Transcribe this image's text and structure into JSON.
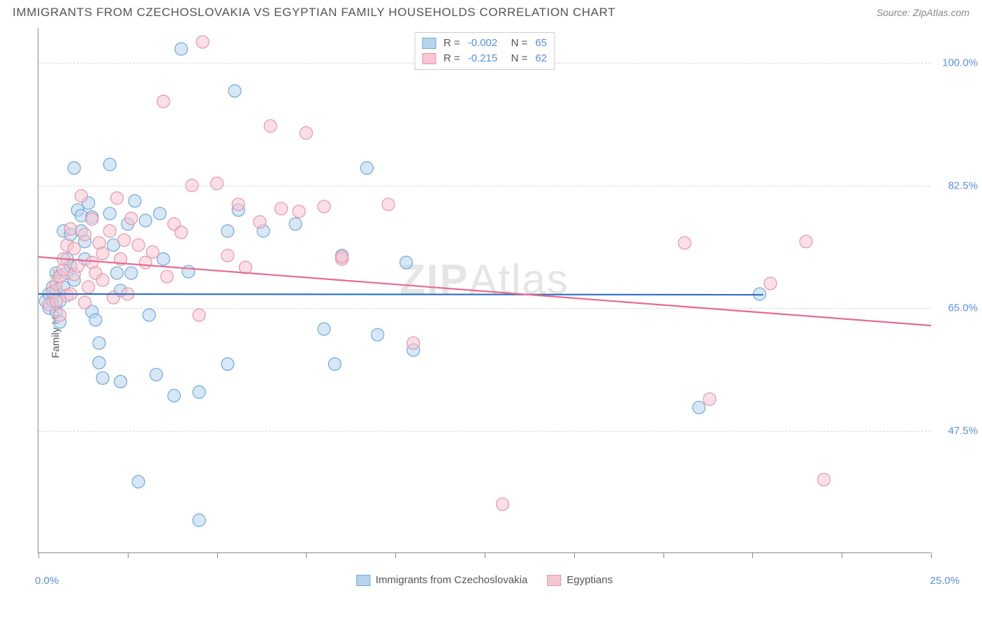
{
  "title": "IMMIGRANTS FROM CZECHOSLOVAKIA VS EGYPTIAN FAMILY HOUSEHOLDS CORRELATION CHART",
  "source_label": "Source: ",
  "source_name": "ZipAtlas.com",
  "watermark": "ZIPAtlas",
  "chart": {
    "type": "scatter",
    "ylabel": "Family Households",
    "xlim": [
      0,
      25
    ],
    "ylim": [
      30,
      105
    ],
    "xaxis_labels": {
      "min": "0.0%",
      "max": "25.0%"
    },
    "ytick_values": [
      47.5,
      65.0,
      82.5,
      100.0
    ],
    "ytick_labels": [
      "47.5%",
      "65.0%",
      "82.5%",
      "100.0%"
    ],
    "xtick_values": [
      0,
      2.5,
      5,
      7.5,
      10,
      12.5,
      15,
      17.5,
      20,
      22.5,
      25
    ],
    "background_color": "#ffffff",
    "grid_color": "#d9d9d9",
    "axis_color": "#888888",
    "marker_radius": 9,
    "marker_opacity": 0.55,
    "series": [
      {
        "name": "Immigrants from Czechoslovakia",
        "color_fill": "#b8d4ed",
        "color_stroke": "#6fa8dc",
        "trend_color": "#2d6cc0",
        "R": "-0.002",
        "N": "65",
        "trend": {
          "x1": 0,
          "y1": 67.0,
          "x2": 20.3,
          "y2": 66.9
        },
        "points": [
          [
            0.2,
            66
          ],
          [
            0.3,
            67
          ],
          [
            0.3,
            65
          ],
          [
            0.4,
            66
          ],
          [
            0.4,
            68
          ],
          [
            0.5,
            64.5
          ],
          [
            0.5,
            67.5
          ],
          [
            0.5,
            70
          ],
          [
            0.6,
            66
          ],
          [
            0.6,
            63
          ],
          [
            0.7,
            68
          ],
          [
            0.7,
            76
          ],
          [
            0.8,
            70
          ],
          [
            0.8,
            72
          ],
          [
            0.9,
            75.5
          ],
          [
            0.9,
            71
          ],
          [
            1.0,
            69
          ],
          [
            1.0,
            85
          ],
          [
            1.1,
            79
          ],
          [
            1.2,
            78.2
          ],
          [
            1.2,
            76
          ],
          [
            1.3,
            74.5
          ],
          [
            1.3,
            72
          ],
          [
            1.4,
            80
          ],
          [
            1.5,
            78
          ],
          [
            1.5,
            64.5
          ],
          [
            1.6,
            63.3
          ],
          [
            1.7,
            60
          ],
          [
            1.7,
            57.2
          ],
          [
            1.8,
            55
          ],
          [
            2.0,
            85.5
          ],
          [
            2.0,
            78.5
          ],
          [
            2.1,
            74
          ],
          [
            2.2,
            70
          ],
          [
            2.3,
            67.5
          ],
          [
            2.3,
            54.5
          ],
          [
            2.5,
            77
          ],
          [
            2.6,
            70
          ],
          [
            2.7,
            80.3
          ],
          [
            2.8,
            40.2
          ],
          [
            3.0,
            77.5
          ],
          [
            3.1,
            64
          ],
          [
            3.3,
            55.5
          ],
          [
            3.4,
            78.5
          ],
          [
            3.5,
            72
          ],
          [
            3.8,
            52.5
          ],
          [
            4.0,
            102
          ],
          [
            4.2,
            70.2
          ],
          [
            4.5,
            34.7
          ],
          [
            4.5,
            53
          ],
          [
            5.3,
            76
          ],
          [
            5.3,
            57
          ],
          [
            5.5,
            96
          ],
          [
            5.6,
            79
          ],
          [
            6.3,
            76
          ],
          [
            7.2,
            77
          ],
          [
            8.0,
            62
          ],
          [
            8.3,
            57
          ],
          [
            8.5,
            72.5
          ],
          [
            9.2,
            85
          ],
          [
            9.5,
            61.2
          ],
          [
            10.3,
            71.5
          ],
          [
            10.5,
            59
          ],
          [
            18.5,
            50.8
          ],
          [
            20.2,
            67
          ]
        ]
      },
      {
        "name": "Egyptians",
        "color_fill": "#f6c6d2",
        "color_stroke": "#e595ab",
        "trend_color": "#e86a8e",
        "R": "-0.215",
        "N": "62",
        "trend": {
          "x1": 0,
          "y1": 72.3,
          "x2": 25,
          "y2": 62.5
        },
        "points": [
          [
            0.3,
            65.5
          ],
          [
            0.4,
            67.3
          ],
          [
            0.5,
            66
          ],
          [
            0.5,
            68.5
          ],
          [
            0.6,
            69.5
          ],
          [
            0.6,
            64
          ],
          [
            0.7,
            70.5
          ],
          [
            0.7,
            72
          ],
          [
            0.8,
            74
          ],
          [
            0.8,
            66.8
          ],
          [
            0.9,
            67
          ],
          [
            0.9,
            76.3
          ],
          [
            1.0,
            69.8
          ],
          [
            1.0,
            73.5
          ],
          [
            1.1,
            71
          ],
          [
            1.2,
            81
          ],
          [
            1.3,
            65.8
          ],
          [
            1.3,
            75.5
          ],
          [
            1.4,
            68
          ],
          [
            1.5,
            71.5
          ],
          [
            1.5,
            77.7
          ],
          [
            1.6,
            70
          ],
          [
            1.7,
            74.3
          ],
          [
            1.8,
            69
          ],
          [
            1.8,
            72.8
          ],
          [
            2.0,
            76
          ],
          [
            2.1,
            66.5
          ],
          [
            2.2,
            80.7
          ],
          [
            2.3,
            72
          ],
          [
            2.4,
            74.7
          ],
          [
            2.5,
            67
          ],
          [
            2.6,
            77.8
          ],
          [
            2.8,
            74
          ],
          [
            3.0,
            71.5
          ],
          [
            3.2,
            73
          ],
          [
            3.5,
            94.5
          ],
          [
            3.6,
            69.5
          ],
          [
            3.8,
            77
          ],
          [
            4.0,
            75.8
          ],
          [
            4.3,
            82.5
          ],
          [
            4.5,
            64
          ],
          [
            4.6,
            103
          ],
          [
            5.0,
            82.8
          ],
          [
            5.3,
            72.5
          ],
          [
            5.6,
            79.8
          ],
          [
            5.8,
            70.8
          ],
          [
            6.2,
            77.3
          ],
          [
            6.5,
            91
          ],
          [
            6.8,
            79.2
          ],
          [
            7.3,
            78.8
          ],
          [
            7.5,
            90
          ],
          [
            8.0,
            79.5
          ],
          [
            8.5,
            72
          ],
          [
            8.5,
            72.3
          ],
          [
            9.8,
            79.8
          ],
          [
            10.5,
            60
          ],
          [
            13.0,
            37
          ],
          [
            18.1,
            74.3
          ],
          [
            18.8,
            52
          ],
          [
            21.5,
            74.5
          ],
          [
            20.5,
            68.5
          ],
          [
            22.0,
            40.5
          ]
        ]
      }
    ]
  },
  "legend_bottom": [
    {
      "label": "Immigrants from Czechoslovakia",
      "fill": "#b8d4ed",
      "stroke": "#6fa8dc"
    },
    {
      "label": "Egyptians",
      "fill": "#f6c6d2",
      "stroke": "#e595ab"
    }
  ]
}
